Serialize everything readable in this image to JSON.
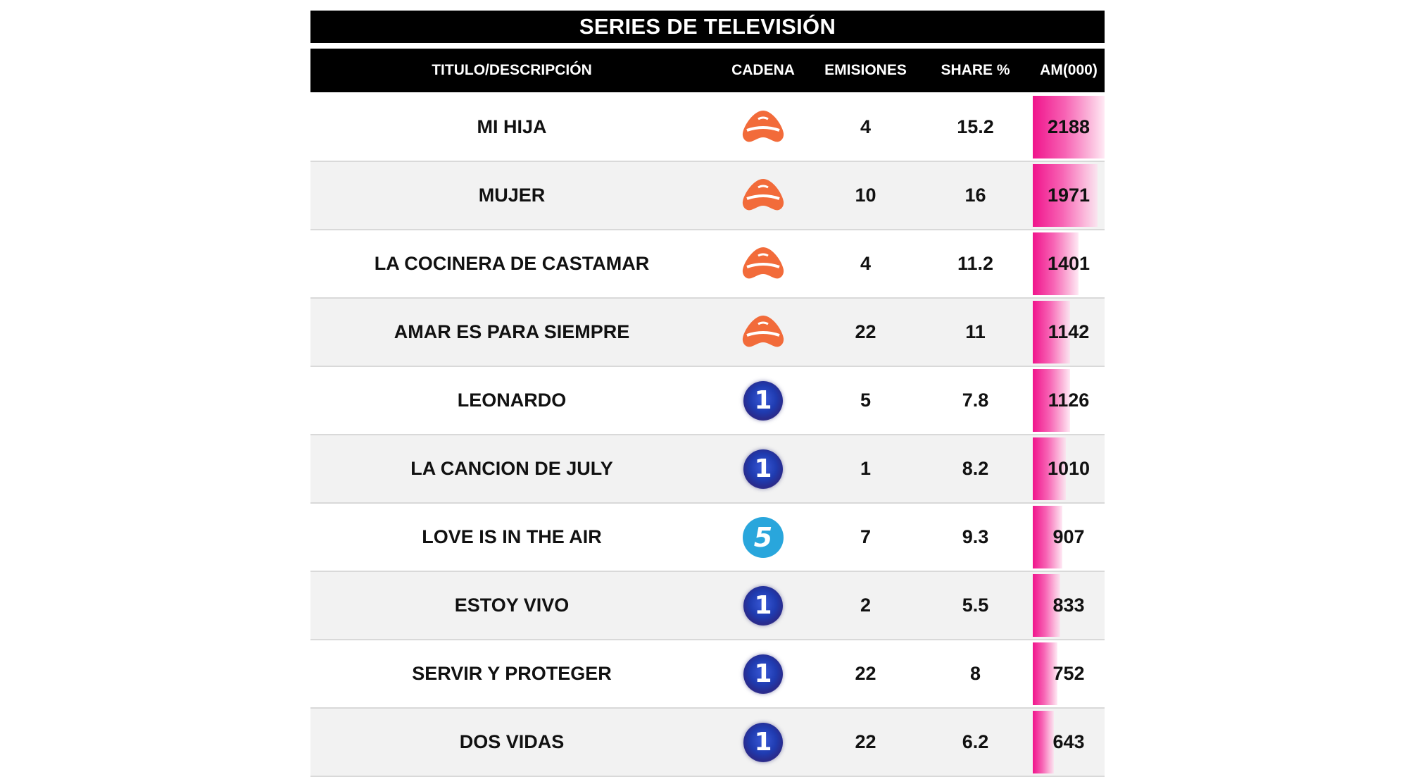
{
  "title": "SERIES DE TELEVISIÓN",
  "headers": {
    "title": "TITULO/DESCRIPCIÓN",
    "channel": "CADENA",
    "emissions": "EMISIONES",
    "share": "SHARE %",
    "am": "AM(000)"
  },
  "colors": {
    "antena3": "#f26b3a",
    "tve1": "#1f3bb0",
    "telecinco": "#29a6dc",
    "am_bar": "#f0148c"
  },
  "am_max": 2188,
  "rows": [
    {
      "title": "MI HIJA",
      "channel": "antena3-logo",
      "emissions": "4",
      "share": "15.2",
      "am": "2188"
    },
    {
      "title": "MUJER",
      "channel": "antena3-logo",
      "emissions": "10",
      "share": "16",
      "am": "1971"
    },
    {
      "title": "LA COCINERA DE CASTAMAR",
      "channel": "antena3-logo",
      "emissions": "4",
      "share": "11.2",
      "am": "1401"
    },
    {
      "title": "AMAR ES PARA SIEMPRE",
      "channel": "antena3-logo",
      "emissions": "22",
      "share": "11",
      "am": "1142"
    },
    {
      "title": "LEONARDO",
      "channel": "tve1-logo",
      "emissions": "5",
      "share": "7.8",
      "am": "1126"
    },
    {
      "title": "LA CANCION DE JULY",
      "channel": "tve1-logo",
      "emissions": "1",
      "share": "8.2",
      "am": "1010"
    },
    {
      "title": "LOVE IS IN THE AIR",
      "channel": "telecinco-logo",
      "emissions": "7",
      "share": "9.3",
      "am": "907"
    },
    {
      "title": "ESTOY VIVO",
      "channel": "tve1-logo",
      "emissions": "2",
      "share": "5.5",
      "am": "833"
    },
    {
      "title": "SERVIR Y PROTEGER",
      "channel": "tve1-logo",
      "emissions": "22",
      "share": "8",
      "am": "752"
    },
    {
      "title": "DOS VIDAS",
      "channel": "tve1-logo",
      "emissions": "22",
      "share": "6.2",
      "am": "643"
    }
  ]
}
